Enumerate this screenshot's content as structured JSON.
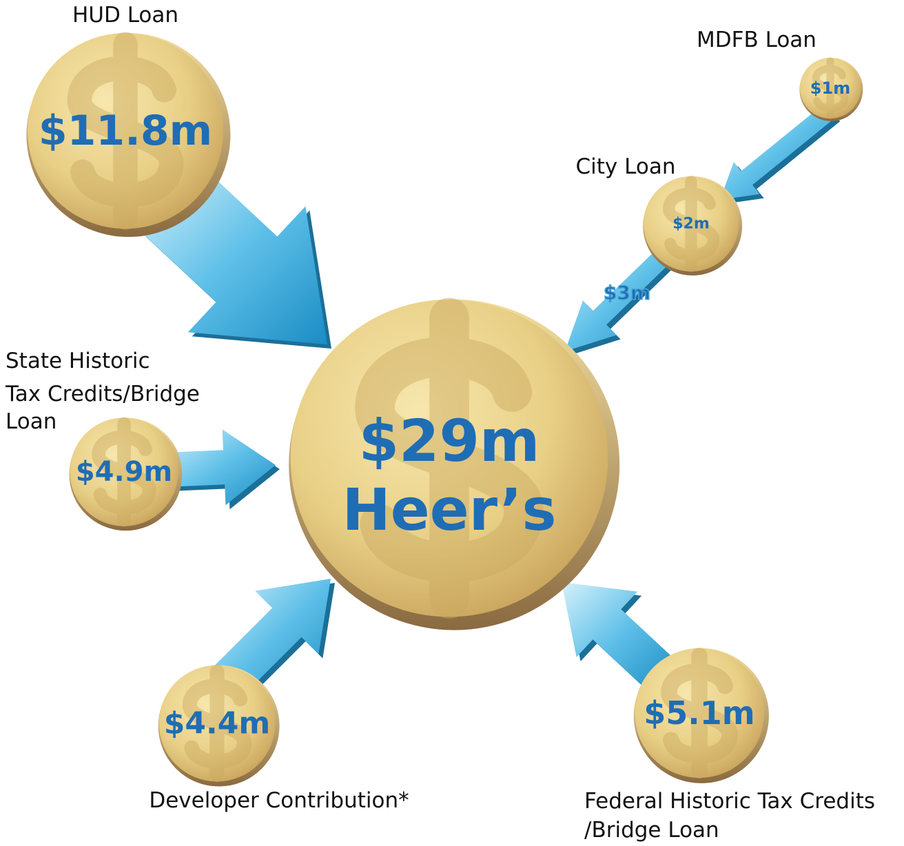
{
  "center": {
    "amount": "$29m",
    "name": "Heer’s"
  },
  "sources": [
    {
      "label": [
        "HUD Loan"
      ],
      "amount": "$11.8m"
    },
    {
      "label": [
        "MDFB Loan"
      ],
      "amount": "$1m"
    },
    {
      "label": [
        "City Loan"
      ],
      "amount": "$2m",
      "outflow": "$3m"
    },
    {
      "label": [
        "State Historic",
        "Tax Credits/Bridge",
        "Loan"
      ],
      "amount": "$4.9m"
    },
    {
      "label": [
        "Developer Contribution*"
      ],
      "amount": "$4.4m"
    },
    {
      "label": [
        "Federal Historic Tax Credits",
        "/Bridge Loan"
      ],
      "amount": "$5.1m"
    }
  ]
}
